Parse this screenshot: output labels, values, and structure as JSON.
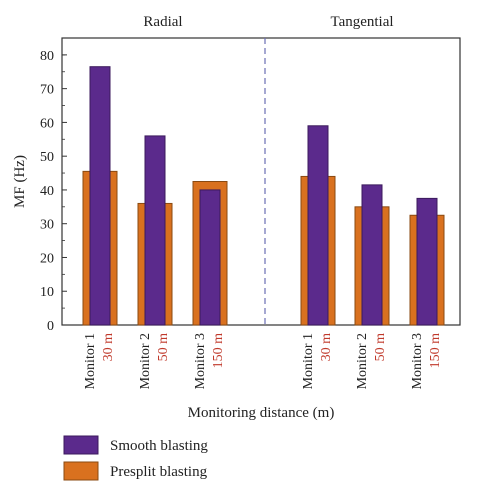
{
  "chart_data": {
    "type": "bar",
    "panels": [
      "Radial",
      "Tangential"
    ],
    "categories": [
      {
        "monitor": "Monitor 1",
        "distance": "30 m"
      },
      {
        "monitor": "Monitor 2",
        "distance": "50 m"
      },
      {
        "monitor": "Monitor 3",
        "distance": "150 m"
      }
    ],
    "series": [
      {
        "name": "Presplit blasting",
        "color": "#d9711f",
        "radial": [
          45.5,
          36,
          42.5
        ],
        "tangential": [
          44,
          35,
          32.5
        ]
      },
      {
        "name": "Smooth blasting",
        "color": "#5b2a8c",
        "radial": [
          76.5,
          56,
          40
        ],
        "tangential": [
          59,
          41.5,
          37.5
        ]
      }
    ],
    "xlabel": "Monitoring distance (m)",
    "ylabel": "MF (Hz)",
    "ylim": [
      0,
      85
    ],
    "yticks": [
      0,
      10,
      20,
      30,
      40,
      50,
      60,
      70,
      80
    ],
    "legend": [
      "Smooth blasting",
      "Presplit blasting"
    ],
    "legend_position": "bottom-left",
    "distance_label_color": "#c0392b",
    "divider": "dashed"
  }
}
